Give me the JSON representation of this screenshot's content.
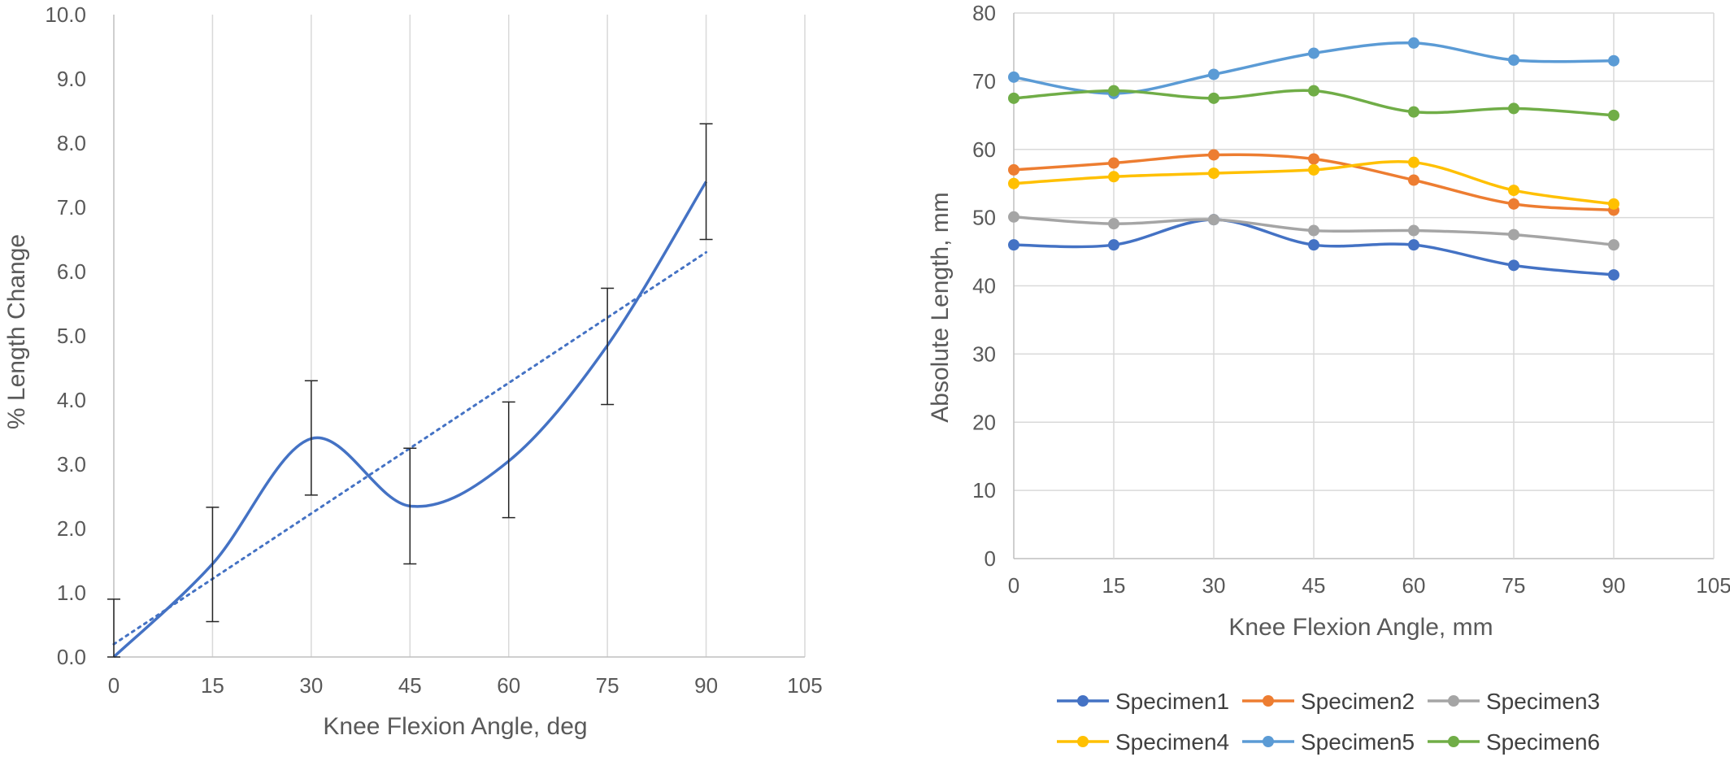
{
  "chart_data": [
    {
      "type": "line",
      "xlabel": "Knee Flexion Angle, deg",
      "ylabel": "% Length Change",
      "xlim": [
        0,
        105
      ],
      "ylim": [
        0,
        10
      ],
      "x_ticks": [
        0,
        15,
        30,
        45,
        60,
        75,
        90,
        105
      ],
      "y_ticks": [
        "0.0",
        "1.0",
        "2.0",
        "3.0",
        "4.0",
        "5.0",
        "6.0",
        "7.0",
        "8.0",
        "9.0",
        "10.0"
      ],
      "grid": "vertical",
      "smooth": true,
      "series": [
        {
          "color": "#4472c4",
          "x": [
            0,
            15,
            30,
            45,
            60,
            75,
            90
          ],
          "values": [
            0.0,
            1.45,
            3.4,
            2.35,
            3.05,
            4.85,
            7.4
          ],
          "error_low": [
            0.0,
            0.55,
            2.52,
            1.45,
            2.17,
            3.93,
            6.5
          ],
          "error_high": [
            0.9,
            2.33,
            4.3,
            3.25,
            3.97,
            5.74,
            8.3
          ]
        }
      ],
      "trendline": {
        "type": "linear",
        "style": "dotted",
        "color": "#4472c4",
        "x": [
          0,
          90
        ],
        "values": [
          0.2,
          6.3
        ]
      }
    },
    {
      "type": "line",
      "xlabel": "Knee Flexion Angle, mm",
      "ylabel": "Absolute Length, mm",
      "xlim": [
        0,
        105
      ],
      "ylim": [
        0,
        80
      ],
      "x_ticks": [
        0,
        15,
        30,
        45,
        60,
        75,
        90,
        105
      ],
      "y_ticks": [
        "0",
        "10",
        "20",
        "30",
        "40",
        "50",
        "60",
        "70",
        "80"
      ],
      "grid": "both",
      "smooth": true,
      "legend": "bottom",
      "categories": [
        0,
        15,
        30,
        45,
        60,
        75,
        90
      ],
      "series": [
        {
          "name": "Specimen1",
          "color": "#4472c4",
          "values": [
            46,
            46,
            49.7,
            46,
            46,
            43,
            41.6
          ]
        },
        {
          "name": "Specimen2",
          "color": "#ed7d31",
          "values": [
            57,
            58,
            59.2,
            58.6,
            55.5,
            52,
            51.1
          ]
        },
        {
          "name": "Specimen3",
          "color": "#a5a5a5",
          "values": [
            50.1,
            49.1,
            49.7,
            48.1,
            48.1,
            47.5,
            46
          ]
        },
        {
          "name": "Specimen4",
          "color": "#ffc000",
          "values": [
            55,
            56,
            56.5,
            57,
            58.1,
            54,
            52
          ]
        },
        {
          "name": "Specimen5",
          "color": "#5b9bd5",
          "values": [
            70.6,
            68.2,
            71,
            74.1,
            75.6,
            73.1,
            73
          ]
        },
        {
          "name": "Specimen6",
          "color": "#70ad47",
          "values": [
            67.5,
            68.6,
            67.5,
            68.6,
            65.5,
            66,
            65
          ]
        }
      ]
    }
  ]
}
